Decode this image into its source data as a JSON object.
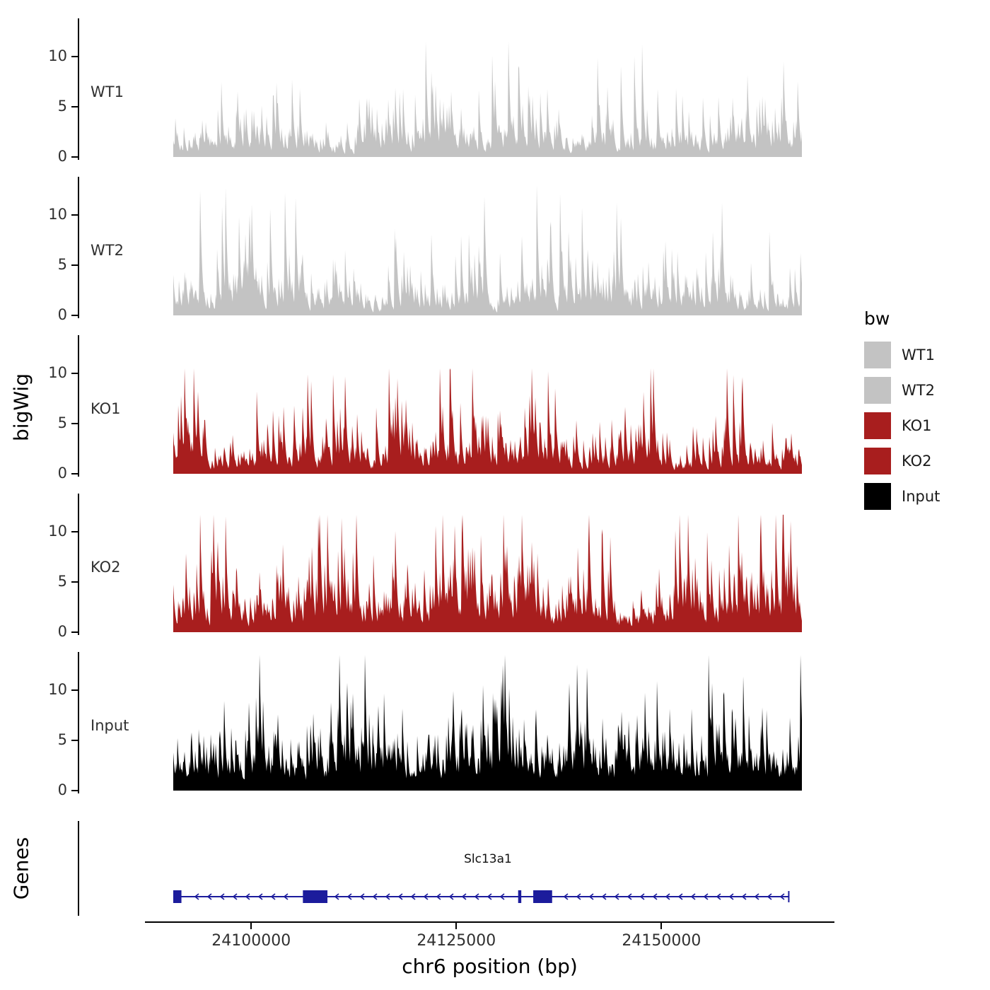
{
  "figure": {
    "y_axis_label": "bigWig",
    "genes_axis_label": "Genes",
    "x_axis_label": "chr6 position (bp)",
    "legend": {
      "title": "bw",
      "items": [
        {
          "label": "WT1",
          "color": "#c3c3c3"
        },
        {
          "label": "WT2",
          "color": "#c3c3c3"
        },
        {
          "label": "KO1",
          "color": "#a81e1e"
        },
        {
          "label": "KO2",
          "color": "#a81e1e"
        },
        {
          "label": "Input",
          "color": "#000000"
        }
      ]
    }
  },
  "chart_data": {
    "type": "area",
    "title": "",
    "xlabel": "chr6 position (bp)",
    "ylabel": "bigWig",
    "x_domain": [
      24090500,
      24167200
    ],
    "x_ticks": [
      24100000,
      24125000,
      24150000
    ],
    "y_ticks": [
      0,
      5,
      10
    ],
    "ylim": [
      0,
      13.5
    ],
    "grid": false,
    "legend_position": "right",
    "tracks": [
      {
        "name": "WT1",
        "color": "#c3c3c3",
        "peak_max": 11.5,
        "render": {
          "seed": 101,
          "scale": 1.7,
          "floor": 0.0
        }
      },
      {
        "name": "WT2",
        "color": "#c3c3c3",
        "peak_max": 13.0,
        "render": {
          "seed": 202,
          "scale": 1.8,
          "floor": 0.0
        }
      },
      {
        "name": "KO1",
        "color": "#a81e1e",
        "peak_max": 10.5,
        "render": {
          "seed": 303,
          "scale": 1.7,
          "floor": 0.0
        }
      },
      {
        "name": "KO2",
        "color": "#a81e1e",
        "peak_max": 11.7,
        "render": {
          "seed": 404,
          "scale": 2.2,
          "floor": 0.2
        }
      },
      {
        "name": "Input",
        "color": "#000000",
        "peak_max": 13.5,
        "render": {
          "seed": 505,
          "scale": 2.3,
          "floor": 1.0
        }
      }
    ],
    "gene_track": {
      "axis_label": "Genes",
      "gene": {
        "name": "Slc13a1",
        "strand": "-",
        "color": "#1c1c9c",
        "start_frac": 0.0,
        "end_frac": 0.978,
        "exons_frac": [
          [
            0.0,
            0.013
          ],
          [
            0.206,
            0.245
          ],
          [
            0.548,
            0.553
          ],
          [
            0.572,
            0.602
          ]
        ]
      }
    }
  }
}
